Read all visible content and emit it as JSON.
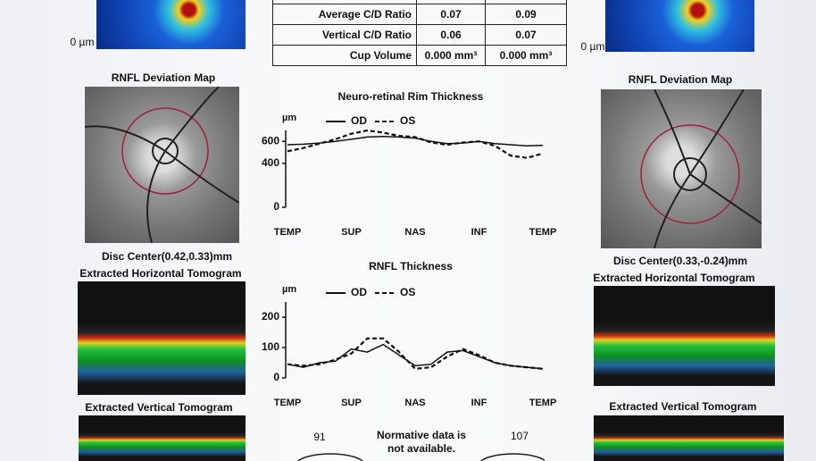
{
  "left": {
    "scale_label": "0 µm",
    "map_title": "RNFL Deviation Map",
    "disc_center": "Disc Center(0.42,0.33)mm",
    "horizontal_title": "Extracted Horizontal Tomogram",
    "vertical_title": "Extracted Vertical Tomogram"
  },
  "right": {
    "scale_label": "0 µm",
    "map_title": "RNFL Deviation Map",
    "disc_center": "Disc Center(0.33,-0.24)mm",
    "horizontal_title": "Extracted Horizontal Tomogram",
    "vertical_title": "Extracted Vertical Tomogram"
  },
  "table": {
    "rows": [
      [
        "Average C/D Ratio",
        "0.07",
        "0.09"
      ],
      [
        "Vertical C/D Ratio",
        "0.06",
        "0.07"
      ],
      [
        "Cup Volume",
        "0.000 mm³",
        "0.000 mm³"
      ]
    ]
  },
  "charts": [
    {
      "type": "line",
      "title": "Neuro-retinal Rim Thickness",
      "y_label": "µm",
      "x": [
        0,
        2,
        4,
        6,
        8,
        10,
        12,
        14,
        16,
        18,
        20,
        22,
        24,
        26,
        28,
        30,
        32
      ],
      "xlim": [
        0,
        32
      ],
      "xticks": [
        {
          "value": 0,
          "label": "TEMP"
        },
        {
          "value": 8,
          "label": "SUP"
        },
        {
          "value": 16,
          "label": "NAS"
        },
        {
          "value": 24,
          "label": "INF"
        },
        {
          "value": 32,
          "label": "TEMP"
        }
      ],
      "ylim": [
        0,
        700
      ],
      "yticks": [
        0,
        400,
        600
      ],
      "series": [
        {
          "name": "OD",
          "color": "#111111",
          "dash": false,
          "values": [
            570,
            575,
            585,
            600,
            620,
            640,
            645,
            640,
            630,
            600,
            580,
            585,
            600,
            580,
            570,
            560,
            565
          ]
        },
        {
          "name": "OS",
          "color": "#111111",
          "dash": true,
          "values": [
            510,
            540,
            580,
            620,
            670,
            700,
            680,
            650,
            640,
            590,
            570,
            590,
            600,
            560,
            470,
            450,
            490
          ]
        }
      ]
    },
    {
      "type": "line",
      "title": "RNFL Thickness",
      "y_label": "µm",
      "x": [
        0,
        2,
        4,
        6,
        8,
        10,
        12,
        14,
        16,
        18,
        20,
        22,
        24,
        26,
        28,
        30,
        32
      ],
      "xlim": [
        0,
        32
      ],
      "xticks": [
        {
          "value": 0,
          "label": "TEMP"
        },
        {
          "value": 8,
          "label": "SUP"
        },
        {
          "value": 16,
          "label": "NAS"
        },
        {
          "value": 24,
          "label": "INF"
        },
        {
          "value": 32,
          "label": "TEMP"
        }
      ],
      "ylim": [
        0,
        250
      ],
      "yticks": [
        0,
        100,
        200
      ],
      "series": [
        {
          "name": "OD",
          "color": "#111111",
          "dash": false,
          "values": [
            45,
            35,
            50,
            55,
            95,
            85,
            110,
            75,
            40,
            45,
            85,
            90,
            70,
            50,
            40,
            35,
            30
          ]
        },
        {
          "name": "OS",
          "color": "#111111",
          "dash": true,
          "values": [
            45,
            40,
            45,
            60,
            80,
            130,
            130,
            85,
            30,
            35,
            70,
            95,
            75,
            50,
            40,
            35,
            30
          ]
        }
      ]
    }
  ],
  "bottom": {
    "left_value": "91",
    "right_value": "107",
    "note": [
      "Normative data is",
      "not available."
    ]
  }
}
